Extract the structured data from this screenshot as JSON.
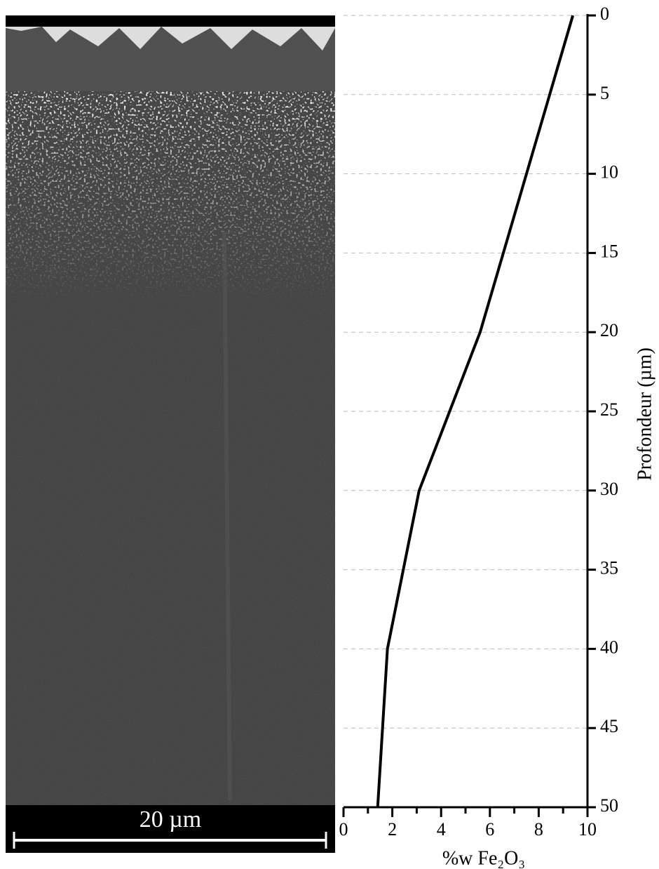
{
  "chart_data": {
    "type": "line",
    "x_label": "%w Fe₂O₃",
    "y_label": "Profondeur (µm)",
    "annotations": [
      "20 µm"
    ],
    "xlim": [
      0,
      10
    ],
    "xticks": [
      0,
      2,
      4,
      6,
      8,
      10
    ],
    "x_minor_ticks": [
      1,
      3,
      5,
      7,
      9
    ],
    "ylim": [
      0,
      50
    ],
    "y_inverted": true,
    "yticks": [
      0,
      5,
      10,
      15,
      20,
      25,
      30,
      35,
      40,
      45,
      50
    ],
    "grid": true,
    "series": [
      {
        "y": [
          0,
          20,
          30,
          40,
          50
        ],
        "values": [
          9.4,
          5.6,
          3.1,
          1.8,
          1.4
        ],
        "color": "#000000"
      }
    ]
  }
}
